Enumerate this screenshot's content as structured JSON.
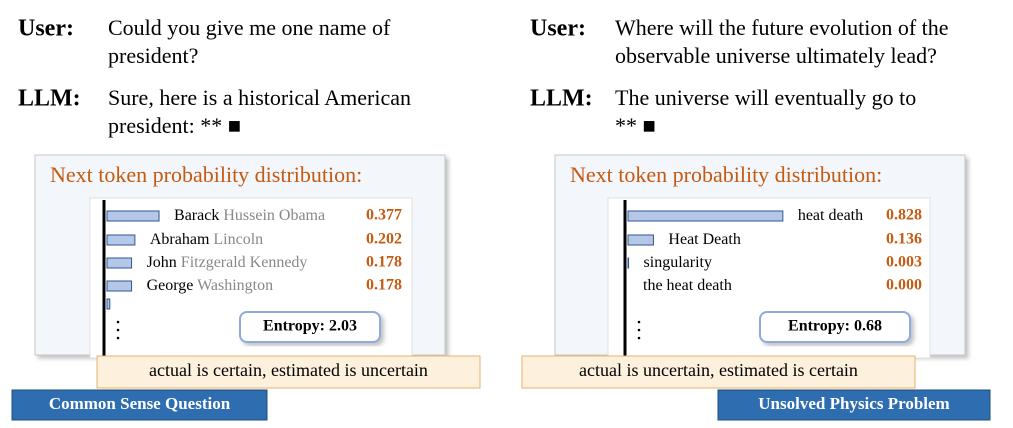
{
  "panels": [
    {
      "user_label": "User:",
      "user_text": [
        "Could you give me one name of",
        "president?"
      ],
      "llm_label": "LLM:",
      "llm_text": [
        "Sure, here is a historical American",
        "president: ** ■"
      ],
      "dist_title": "Next token probability distribution:",
      "token_main": [
        "Barack",
        "Abraham",
        "John",
        "George",
        null
      ],
      "token_rest": [
        "Hussein Obama",
        "Lincoln",
        "Fitzgerald Kennedy",
        "Washington",
        null
      ],
      "values": [
        0.377,
        0.202,
        0.178,
        0.178,
        0.02
      ],
      "value_labels": [
        "0.377",
        "0.202",
        "0.178",
        "0.178",
        null
      ],
      "entropy": "Entropy: 2.03",
      "note": "actual is certain, estimated is uncertain",
      "tag": "Common Sense Question"
    },
    {
      "user_label": "User:",
      "user_text": [
        "Where will the future evolution of the",
        "observable universe ultimately lead?"
      ],
      "llm_label": "LLM:",
      "llm_text": [
        "The universe will eventually go to",
        "** ■"
      ],
      "dist_title": "Next token probability distribution:",
      "token_main": [
        "heat death",
        "Heat Death",
        "singularity",
        "the heat death"
      ],
      "token_rest": [
        null,
        null,
        null,
        null
      ],
      "values": [
        0.828,
        0.136,
        0.003,
        0.0
      ],
      "value_labels": [
        "0.828",
        "0.136",
        "0.003",
        "0.000"
      ],
      "entropy": "Entropy: 0.68",
      "note": "actual is uncertain, estimated is certain",
      "tag": "Unsolved Physics Problem"
    }
  ]
}
